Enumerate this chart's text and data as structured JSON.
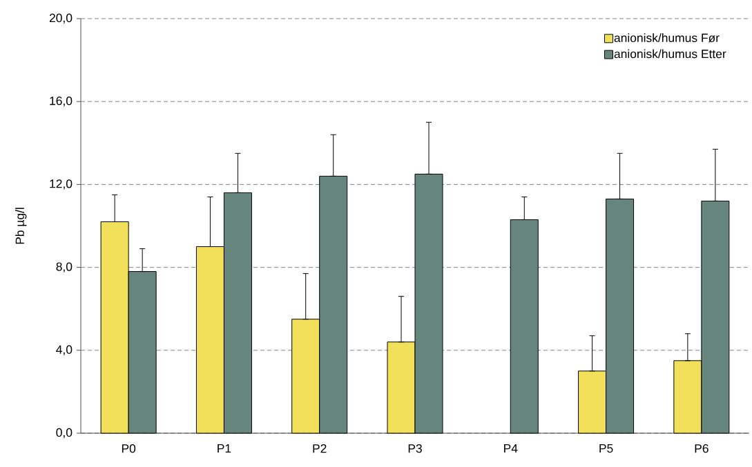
{
  "chart_data": {
    "type": "bar",
    "ylabel": "Pb µg/l",
    "categories": [
      "P0",
      "P1",
      "P2",
      "P3",
      "P4",
      "P5",
      "P6"
    ],
    "series": [
      {
        "name": "anionisk/humus Før",
        "color": "#f2e05a",
        "values": [
          10.2,
          9.0,
          5.5,
          4.4,
          null,
          3.0,
          3.5
        ],
        "errors": [
          [
            10.2,
            11.5
          ],
          [
            9.0,
            11.4
          ],
          [
            5.5,
            7.7
          ],
          [
            4.4,
            6.6
          ],
          null,
          [
            3.0,
            4.7
          ],
          [
            3.5,
            4.8
          ]
        ]
      },
      {
        "name": "anionisk/humus Etter",
        "color": "#66857c",
        "values": [
          7.8,
          11.6,
          12.4,
          12.5,
          10.3,
          11.3,
          11.2
        ],
        "errors": [
          [
            7.8,
            8.9
          ],
          [
            11.6,
            13.5
          ],
          [
            12.4,
            14.4
          ],
          [
            12.5,
            15.0
          ],
          [
            10.3,
            11.4
          ],
          [
            11.3,
            13.5
          ],
          [
            11.2,
            13.7
          ]
        ]
      }
    ],
    "ylim": [
      0,
      20
    ],
    "yticks": [
      {
        "value": 0,
        "label": "0,0"
      },
      {
        "value": 4,
        "label": "4,0"
      },
      {
        "value": 8,
        "label": "8,0"
      },
      {
        "value": 12,
        "label": "12,0"
      },
      {
        "value": 16,
        "label": "16,0"
      },
      {
        "value": 20,
        "label": "20,0"
      }
    ],
    "grid": "y",
    "legend": "top right"
  }
}
